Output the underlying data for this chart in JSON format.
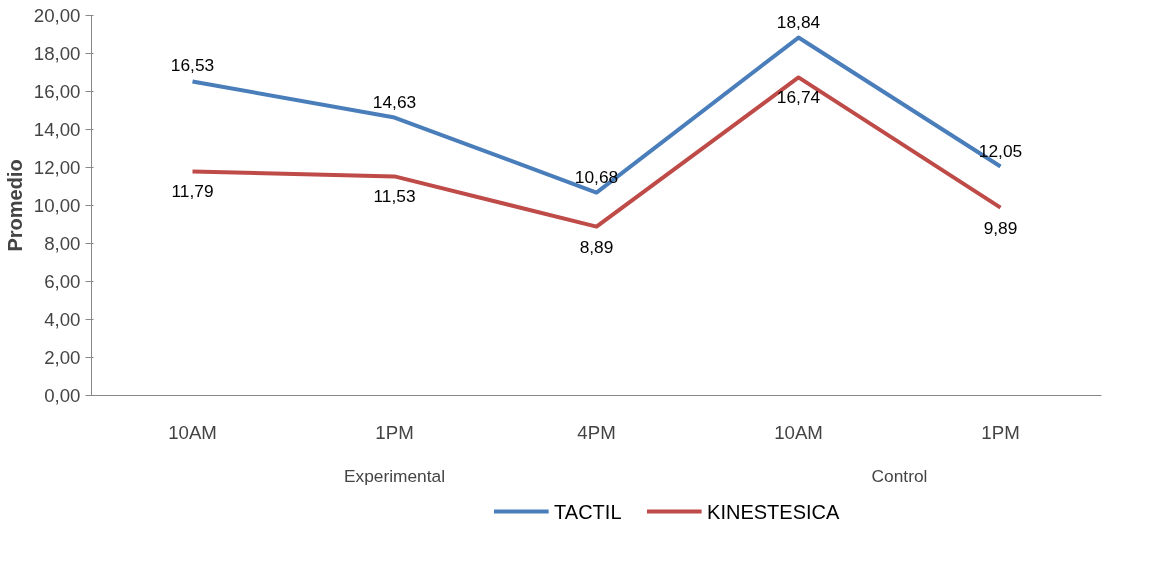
{
  "chart_data": {
    "type": "line",
    "ylabel": "Promedio",
    "categories": [
      "10AM",
      "1PM",
      "4PM",
      "10AM",
      "1PM"
    ],
    "annotations": [
      "Experimental",
      "Control"
    ],
    "series": [
      {
        "name": "TACTIL",
        "color": "#4a7ebb",
        "values": [
          16.53,
          14.63,
          10.68,
          18.84,
          12.05
        ],
        "value_labels": [
          "16,53",
          "14,63",
          "10,68",
          "18,84",
          "12,05"
        ]
      },
      {
        "name": "KINESTESICA",
        "color": "#be4b48",
        "values": [
          11.79,
          11.53,
          8.89,
          16.74,
          9.89
        ],
        "value_labels": [
          "11,79",
          "11,53",
          "8,89",
          "16,74",
          "9,89"
        ]
      }
    ],
    "ylim": [
      0,
      20
    ],
    "yticks": [
      {
        "value": 0,
        "label": "0,00"
      },
      {
        "value": 2,
        "label": "2,00"
      },
      {
        "value": 4,
        "label": "4,00"
      },
      {
        "value": 6,
        "label": "6,00"
      },
      {
        "value": 8,
        "label": "8,00"
      },
      {
        "value": 10,
        "label": "10,00"
      },
      {
        "value": 12,
        "label": "12,00"
      },
      {
        "value": 14,
        "label": "14,00"
      },
      {
        "value": 16,
        "label": "16,00"
      },
      {
        "value": 18,
        "label": "18,00"
      },
      {
        "value": 20,
        "label": "20,00"
      }
    ],
    "grid": false,
    "legend": "bottom",
    "marker": "none",
    "line_style": "solid"
  }
}
